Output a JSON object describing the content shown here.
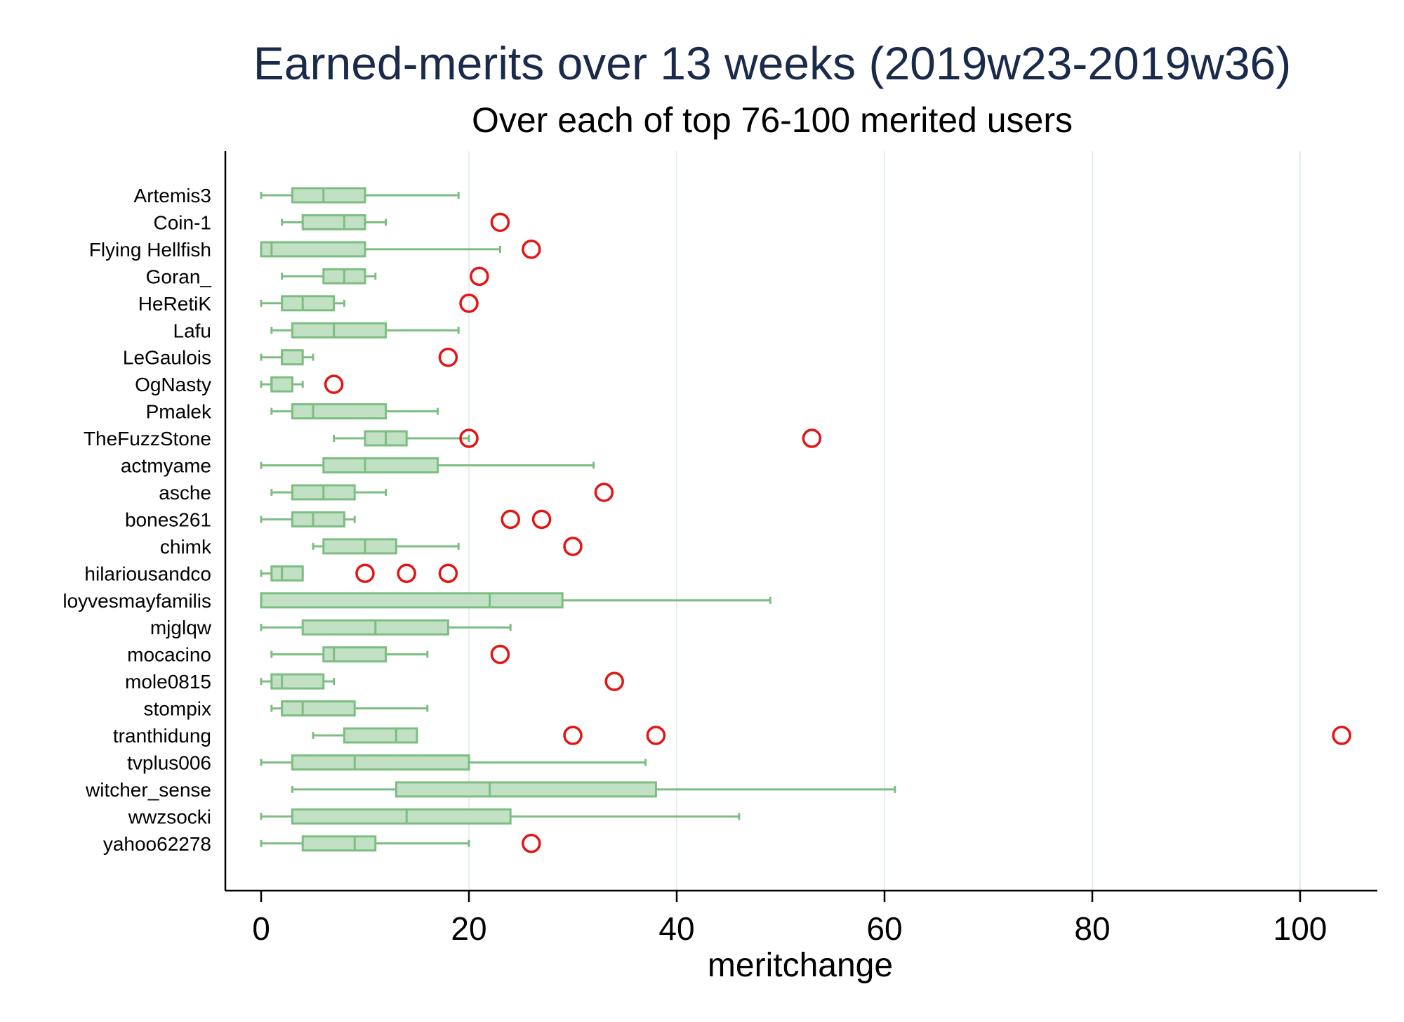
{
  "chart_data": {
    "type": "boxplot",
    "orientation": "horizontal",
    "title": "Earned-merits over 13 weeks (2019w23-2019w36)",
    "subtitle": "Over each of top 76-100 merited users",
    "xlabel": "meritchange",
    "xlim": [
      -3,
      107.5
    ],
    "xticks": [
      0,
      20,
      40,
      60,
      80,
      100
    ],
    "grid": "vertical gridlines",
    "legend": "none",
    "colors": {
      "box_fill": "#c2e0c4",
      "box_stroke": "#7cbe81",
      "outlier": "#e31414",
      "grid": "#e3efea",
      "title": "#1a2a4a"
    },
    "series": [
      {
        "category": "Artemis3",
        "whisker_low": 0,
        "q1": 3,
        "median": 6,
        "q3": 10,
        "whisker_high": 19,
        "outliers": []
      },
      {
        "category": "Coin-1",
        "whisker_low": 2,
        "q1": 4,
        "median": 8,
        "q3": 10,
        "whisker_high": 12,
        "outliers": [
          23
        ]
      },
      {
        "category": "Flying Hellfish",
        "whisker_low": 0,
        "q1": 0,
        "median": 1,
        "q3": 10,
        "whisker_high": 23,
        "outliers": [
          26
        ]
      },
      {
        "category": "Goran_",
        "whisker_low": 2,
        "q1": 6,
        "median": 8,
        "q3": 10,
        "whisker_high": 11,
        "outliers": [
          21
        ]
      },
      {
        "category": "HeRetiK",
        "whisker_low": 0,
        "q1": 2,
        "median": 4,
        "q3": 7,
        "whisker_high": 8,
        "outliers": [
          20
        ]
      },
      {
        "category": "Lafu",
        "whisker_low": 1,
        "q1": 3,
        "median": 7,
        "q3": 12,
        "whisker_high": 19,
        "outliers": []
      },
      {
        "category": "LeGaulois",
        "whisker_low": 0,
        "q1": 2,
        "median": 2,
        "q3": 4,
        "whisker_high": 5,
        "outliers": [
          18
        ]
      },
      {
        "category": "OgNasty",
        "whisker_low": 0,
        "q1": 1,
        "median": 1,
        "q3": 3,
        "whisker_high": 4,
        "outliers": [
          7
        ]
      },
      {
        "category": "Pmalek",
        "whisker_low": 1,
        "q1": 3,
        "median": 5,
        "q3": 12,
        "whisker_high": 17,
        "outliers": []
      },
      {
        "category": "TheFuzzStone",
        "whisker_low": 7,
        "q1": 10,
        "median": 12,
        "q3": 14,
        "whisker_high": 20,
        "outliers": [
          20,
          53
        ]
      },
      {
        "category": "actmyame",
        "whisker_low": 0,
        "q1": 6,
        "median": 10,
        "q3": 17,
        "whisker_high": 32,
        "outliers": []
      },
      {
        "category": "asche",
        "whisker_low": 1,
        "q1": 3,
        "median": 6,
        "q3": 9,
        "whisker_high": 12,
        "outliers": [
          33
        ]
      },
      {
        "category": "bones261",
        "whisker_low": 0,
        "q1": 3,
        "median": 5,
        "q3": 8,
        "whisker_high": 9,
        "outliers": [
          24,
          27
        ]
      },
      {
        "category": "chimk",
        "whisker_low": 5,
        "q1": 6,
        "median": 10,
        "q3": 13,
        "whisker_high": 19,
        "outliers": [
          30
        ]
      },
      {
        "category": "hilariousandco",
        "whisker_low": 0,
        "q1": 1,
        "median": 2,
        "q3": 4,
        "whisker_high": 4,
        "outliers": [
          10,
          14,
          18
        ]
      },
      {
        "category": "loyvesmayfamilis",
        "whisker_low": 0,
        "q1": 0,
        "median": 22,
        "q3": 29,
        "whisker_high": 49,
        "outliers": []
      },
      {
        "category": "mjglqw",
        "whisker_low": 0,
        "q1": 4,
        "median": 11,
        "q3": 18,
        "whisker_high": 24,
        "outliers": []
      },
      {
        "category": "mocacino",
        "whisker_low": 1,
        "q1": 6,
        "median": 7,
        "q3": 12,
        "whisker_high": 16,
        "outliers": [
          23
        ]
      },
      {
        "category": "mole0815",
        "whisker_low": 0,
        "q1": 1,
        "median": 2,
        "q3": 6,
        "whisker_high": 7,
        "outliers": [
          34
        ]
      },
      {
        "category": "stompix",
        "whisker_low": 1,
        "q1": 2,
        "median": 4,
        "q3": 9,
        "whisker_high": 16,
        "outliers": []
      },
      {
        "category": "tranthidung",
        "whisker_low": 5,
        "q1": 8,
        "median": 13,
        "q3": 15,
        "whisker_high": 15,
        "outliers": [
          30,
          38,
          104
        ]
      },
      {
        "category": "tvplus006",
        "whisker_low": 0,
        "q1": 3,
        "median": 9,
        "q3": 20,
        "whisker_high": 37,
        "outliers": []
      },
      {
        "category": "witcher_sense",
        "whisker_low": 3,
        "q1": 13,
        "median": 22,
        "q3": 38,
        "whisker_high": 61,
        "outliers": []
      },
      {
        "category": "wwzsocki",
        "whisker_low": 0,
        "q1": 3,
        "median": 14,
        "q3": 24,
        "whisker_high": 46,
        "outliers": []
      },
      {
        "category": "yahoo62278",
        "whisker_low": 0,
        "q1": 4,
        "median": 9,
        "q3": 11,
        "whisker_high": 20,
        "outliers": [
          26
        ]
      }
    ]
  }
}
